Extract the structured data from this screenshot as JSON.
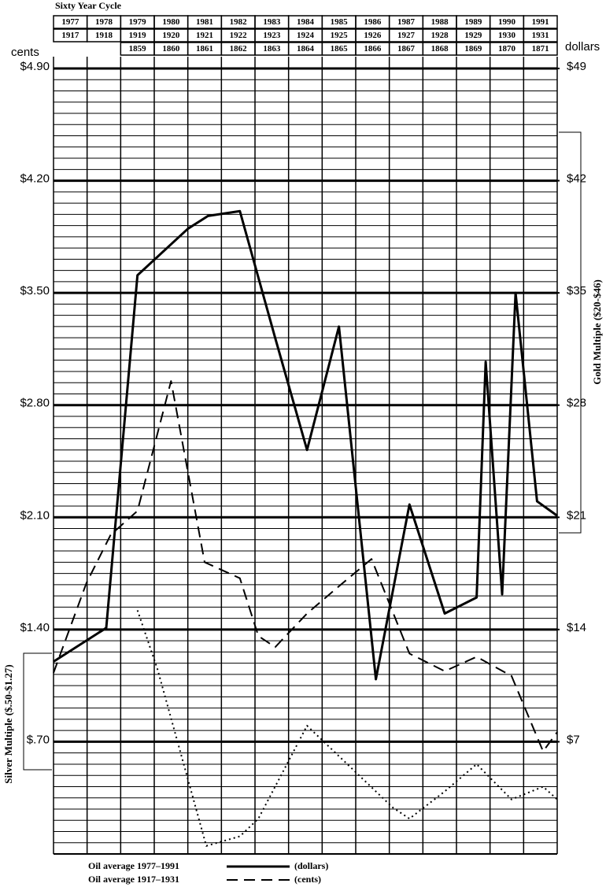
{
  "chart_data": {
    "type": "line",
    "title": "Sixty Year Cycle",
    "header_rows": [
      [
        "1977",
        "1978",
        "1979",
        "1980",
        "1981",
        "1982",
        "1983",
        "1984",
        "1985",
        "1986",
        "1987",
        "1988",
        "1989",
        "1990",
        "1991"
      ],
      [
        "1917",
        "1918",
        "1919",
        "1920",
        "1921",
        "1922",
        "1923",
        "1924",
        "1925",
        "1926",
        "1927",
        "1928",
        "1929",
        "1930",
        "1931"
      ],
      [
        null,
        null,
        "1859",
        "1860",
        "1861",
        "1862",
        "1863",
        "1864",
        "1865",
        "1866",
        "1867",
        "1868",
        "1869",
        "1870",
        "1871"
      ]
    ],
    "y_axis_label": "cents",
    "y2_axis_label": "dollars",
    "xlim": [
      1977,
      1992
    ],
    "ylim": [
      0,
      4.9
    ],
    "yticks": [
      {
        "value": 4.9,
        "label": "$4.90"
      },
      {
        "value": 4.2,
        "label": "$4.20"
      },
      {
        "value": 3.5,
        "label": "$3.50"
      },
      {
        "value": 2.8,
        "label": "$2.80"
      },
      {
        "value": 2.1,
        "label": "$2.10"
      },
      {
        "value": 1.4,
        "label": "$1.40"
      },
      {
        "value": 0.7,
        "label": "$.70"
      }
    ],
    "y2lim": [
      0,
      49
    ],
    "y2ticks": [
      {
        "value": 49,
        "label": "$49"
      },
      {
        "value": 42,
        "label": "$42"
      },
      {
        "value": 35,
        "label": "$35"
      },
      {
        "value": 28,
        "label": "$28"
      },
      {
        "value": 21,
        "label": "$21"
      },
      {
        "value": 14,
        "label": "$14"
      },
      {
        "value": 7,
        "label": "$7"
      }
    ],
    "grid": true,
    "minor_grid_divisions": 10,
    "annotations": [
      "Gold Multiple ($20-$46)",
      "Silver Multiple ($.50-$1.27)"
    ],
    "series": [
      {
        "name": "Oil average 1977–1991",
        "unit": "(dollars)",
        "axis": "y2",
        "color": "#000",
        "style": "solid",
        "x": [
          1977.0,
          1978.57,
          1979.5,
          1981.0,
          1981.6,
          1982.55,
          1983.6,
          1984.55,
          1985.5,
          1986.6,
          1987.6,
          1988.65,
          1989.6,
          1989.87,
          1990.36,
          1990.76,
          1991.4,
          1992.0
        ],
        "values": [
          12.0,
          14.1,
          36.1,
          39.0,
          39.8,
          40.1,
          32.2,
          25.2,
          32.9,
          10.9,
          21.8,
          15.0,
          16.0,
          30.7,
          16.2,
          35.0,
          22.0,
          21.1
        ]
      },
      {
        "name": "Oil average 1917–1931",
        "unit": "(cents)",
        "color": "#000",
        "style": "dashed",
        "x": [
          1977.0,
          1977.98,
          1978.7,
          1979.5,
          1980.5,
          1981.5,
          1982.55,
          1983.1,
          1983.6,
          1984.55,
          1985.5,
          1986.47,
          1987.6,
          1988.65,
          1989.6,
          1990.64,
          1991.58,
          1992.0
        ],
        "values": [
          1.13,
          1.69,
          1.99,
          2.14,
          2.95,
          1.82,
          1.72,
          1.36,
          1.29,
          1.5,
          1.67,
          1.84,
          1.25,
          1.14,
          1.23,
          1.11,
          0.64,
          0.76
        ]
      },
      {
        "axis": "y2",
        "color": "#000",
        "style": "dotted",
        "x": [
          1979.5,
          1980.1,
          1981.55,
          1982.55,
          1983.1,
          1984.55,
          1985.95,
          1987.1,
          1987.6,
          1988.65,
          1989.6,
          1990.64,
          1991.58,
          1992.0
        ],
        "values": [
          15.2,
          11.5,
          0.5,
          1.1,
          2.2,
          8.0,
          5.2,
          2.9,
          2.2,
          3.9,
          5.6,
          3.4,
          4.2,
          3.4
        ]
      }
    ]
  }
}
